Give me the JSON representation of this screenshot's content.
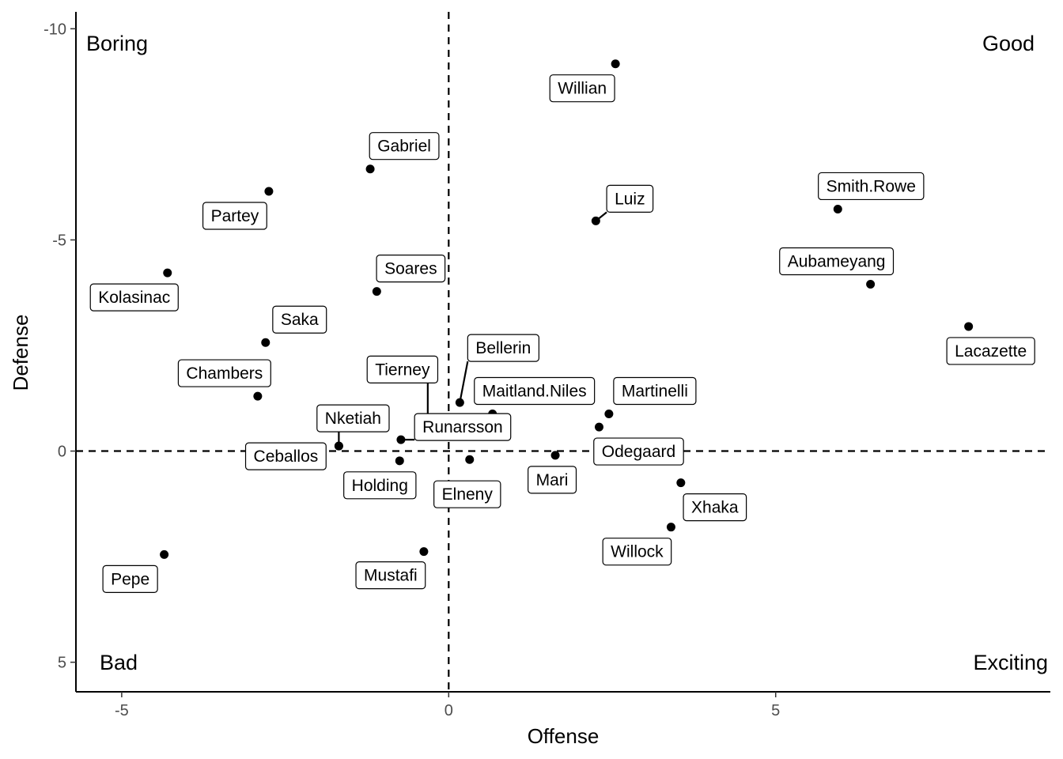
{
  "chart_data": {
    "type": "scatter",
    "xlabel": "Offense",
    "ylabel": "Defense",
    "xlim": [
      -5.7,
      9.2
    ],
    "ylim": [
      -10.4,
      5.7
    ],
    "y_reversed": true,
    "x_ticks": [
      {
        "value": -5,
        "label": "-5"
      },
      {
        "value": 0,
        "label": "0"
      },
      {
        "value": 5,
        "label": "5"
      }
    ],
    "y_ticks": [
      {
        "value": -10,
        "label": "-10"
      },
      {
        "value": -5,
        "label": "-5"
      },
      {
        "value": 0,
        "label": "0"
      },
      {
        "value": 5,
        "label": "5"
      }
    ],
    "reference_lines": {
      "x": 0,
      "y": 0,
      "style": "dashed"
    },
    "grid": false,
    "quadrant_labels": {
      "top_left": "Boring",
      "top_right": "Good",
      "bottom_left": "Bad",
      "bottom_right": "Exciting"
    },
    "points": [
      {
        "name": "Willian",
        "x": 2.55,
        "y": -9.17
      },
      {
        "name": "Gabriel",
        "x": -1.2,
        "y": -6.68
      },
      {
        "name": "Partey",
        "x": -2.75,
        "y": -6.15
      },
      {
        "name": "Luiz",
        "x": 2.25,
        "y": -5.45
      },
      {
        "name": "Smith.Rowe",
        "x": 5.95,
        "y": -5.73
      },
      {
        "name": "Kolasinac",
        "x": -4.3,
        "y": -4.22
      },
      {
        "name": "Soares",
        "x": -1.1,
        "y": -3.78
      },
      {
        "name": "Aubameyang",
        "x": 6.45,
        "y": -3.95
      },
      {
        "name": "Lacazette",
        "x": 7.95,
        "y": -2.95
      },
      {
        "name": "Saka",
        "x": -2.8,
        "y": -2.57
      },
      {
        "name": "Chambers",
        "x": -2.92,
        "y": -1.3
      },
      {
        "name": "Bellerin",
        "x": 0.17,
        "y": -1.15
      },
      {
        "name": "Maitland.Niles",
        "x": 0.67,
        "y": -0.88
      },
      {
        "name": "Martinelli",
        "x": 2.45,
        "y": -0.88
      },
      {
        "name": "Tierney",
        "x": -0.32,
        "y": -0.77
      },
      {
        "name": "Odegaard",
        "x": 2.3,
        "y": -0.57
      },
      {
        "name": "Runarsson",
        "x": -0.73,
        "y": -0.27
      },
      {
        "name": "Nketiah",
        "x": -1.68,
        "y": -0.12
      },
      {
        "name": "Mari",
        "x": 1.63,
        "y": 0.1
      },
      {
        "name": "Holding",
        "x": -0.75,
        "y": 0.23
      },
      {
        "name": "Ceballos",
        "x": -1.68,
        "y": -0.12
      },
      {
        "name": "Elneny",
        "x": 0.32,
        "y": 0.2
      },
      {
        "name": "Xhaka",
        "x": 3.55,
        "y": 0.75
      },
      {
        "name": "Willock",
        "x": 3.4,
        "y": 1.8
      },
      {
        "name": "Mustafi",
        "x": -0.38,
        "y": 2.38
      },
      {
        "name": "Pepe",
        "x": -4.35,
        "y": 2.45
      }
    ]
  }
}
